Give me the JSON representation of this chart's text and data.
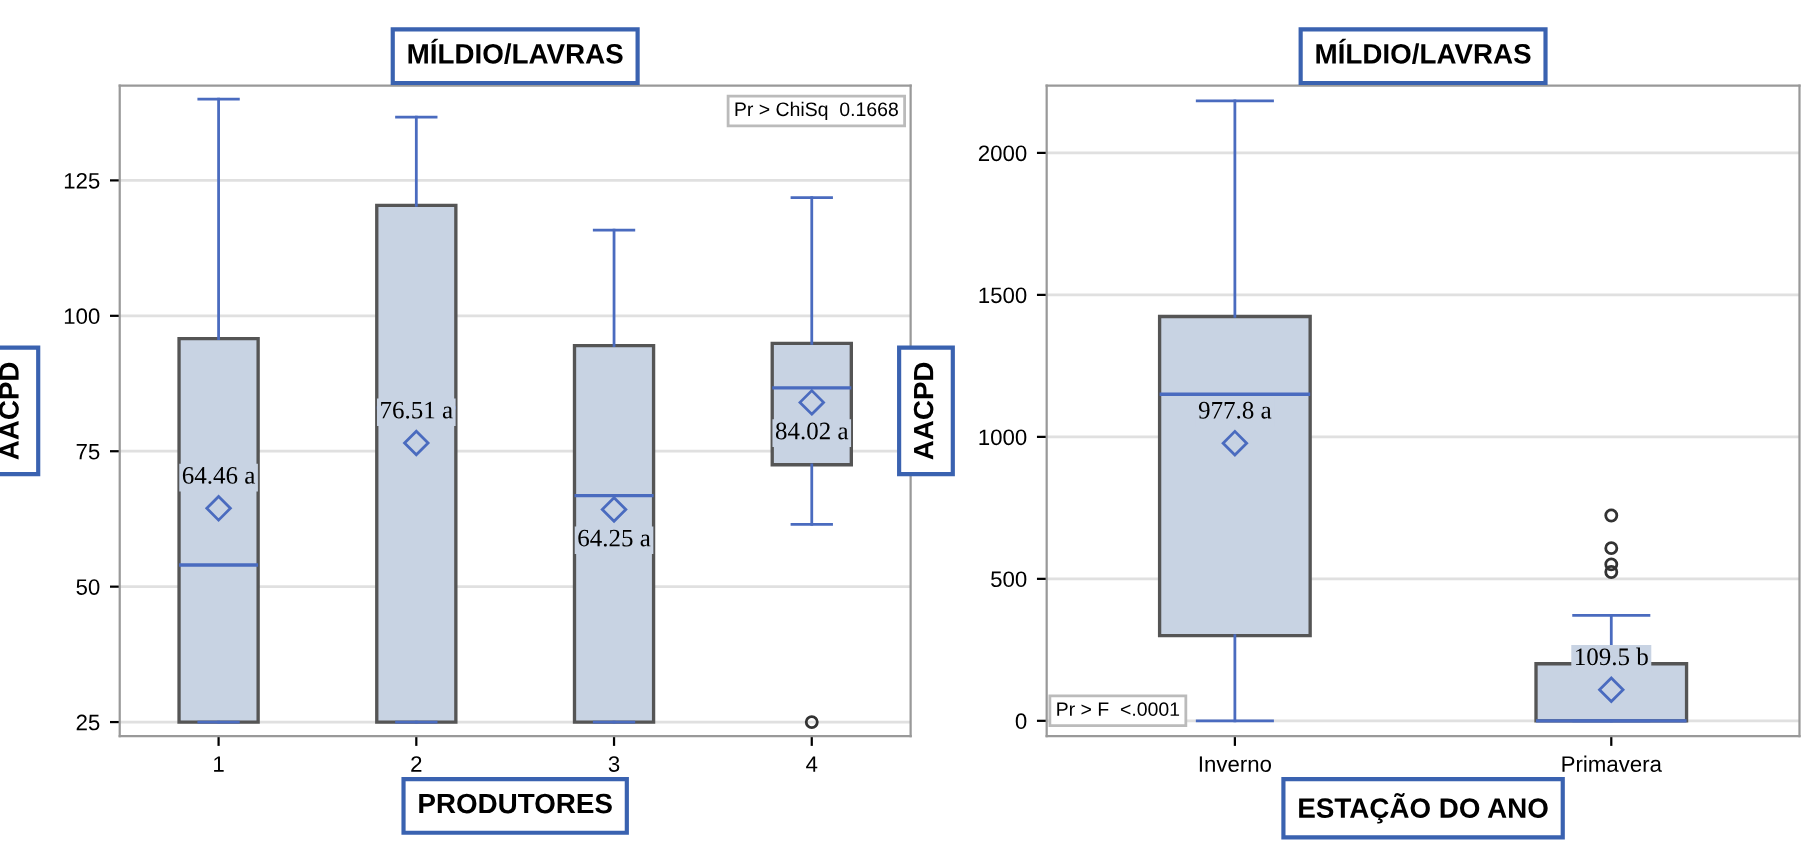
{
  "chart_data": [
    {
      "type": "box",
      "title": "MÍLDIO/LAVRAS",
      "xlabel": "PRODUTORES",
      "ylabel": "AACPD",
      "categories": [
        "1",
        "2",
        "3",
        "4"
      ],
      "series": [
        {
          "color": "#c8d3e3",
          "boxes": [
            {
              "low": 25,
              "q1": 25,
              "median": 54,
              "q3": 95.8,
              "high": 140,
              "mean": 64.46
            },
            {
              "low": 25,
              "q1": 25,
              "median": 83,
              "q3": 120.4,
              "high": 136.7,
              "mean": 76.51
            },
            {
              "low": 25,
              "q1": 25,
              "median": 66.8,
              "q3": 94.5,
              "high": 115.8,
              "mean": 64.25
            },
            {
              "low": 61.5,
              "q1": 72.5,
              "median": 86.7,
              "q3": 94.9,
              "high": 121.8,
              "mean": 84.02,
              "outliers": [
                25
              ]
            }
          ]
        }
      ],
      "ylim": [
        22.4,
        142.5
      ],
      "yticks": [
        25,
        50,
        75,
        100,
        125
      ],
      "grid": "y",
      "annotations": [
        "64.46 a",
        "76.51 a",
        "64.25 a",
        "84.02 a",
        "Pr > ChiSq  0.1668"
      ]
    },
    {
      "type": "box",
      "title": "MÍLDIO/LAVRAS",
      "xlabel": "ESTAÇÃO DO ANO",
      "ylabel": "AACPD",
      "categories": [
        "Inverno",
        "Primavera"
      ],
      "series": [
        {
          "color": "#c8d3e3",
          "boxes": [
            {
              "low": 0,
              "q1": 300,
              "median": 1150,
              "q3": 1424,
              "high": 2183,
              "mean": 977.8
            },
            {
              "low": 0,
              "q1": 0,
              "median": 0,
              "q3": 201,
              "high": 371,
              "mean": 109.5,
              "outliers": [
                524,
                551,
                608,
                723
              ]
            }
          ]
        }
      ],
      "ylim": [
        -54,
        2237
      ],
      "yticks": [
        0,
        500,
        1000,
        1500,
        2000
      ],
      "grid": "y",
      "annotations": [
        "977.8 a",
        "109.5 b",
        "Pr > F  <.0001"
      ]
    }
  ]
}
